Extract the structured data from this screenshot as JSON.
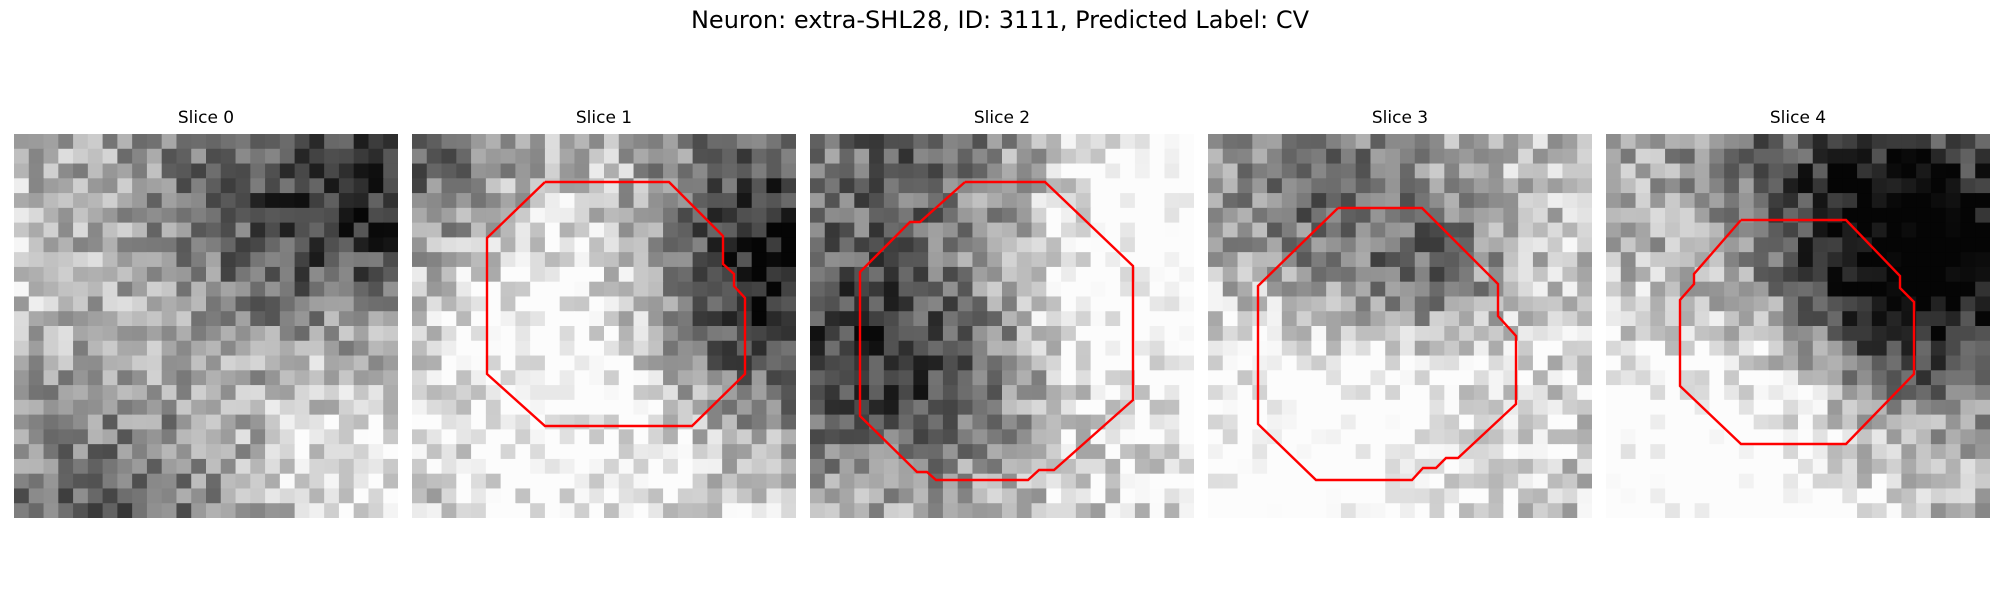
{
  "figure": {
    "title": "Neuron: extra-SHL28, ID: 3111, Predicted Label: CV"
  },
  "panels": [
    {
      "title": "Slice 0"
    },
    {
      "title": "Slice 1"
    },
    {
      "title": "Slice 2"
    },
    {
      "title": "Slice 3"
    },
    {
      "title": "Slice 4"
    }
  ],
  "colors": {
    "contour": "#ff0000",
    "background": "#ffffff"
  }
}
